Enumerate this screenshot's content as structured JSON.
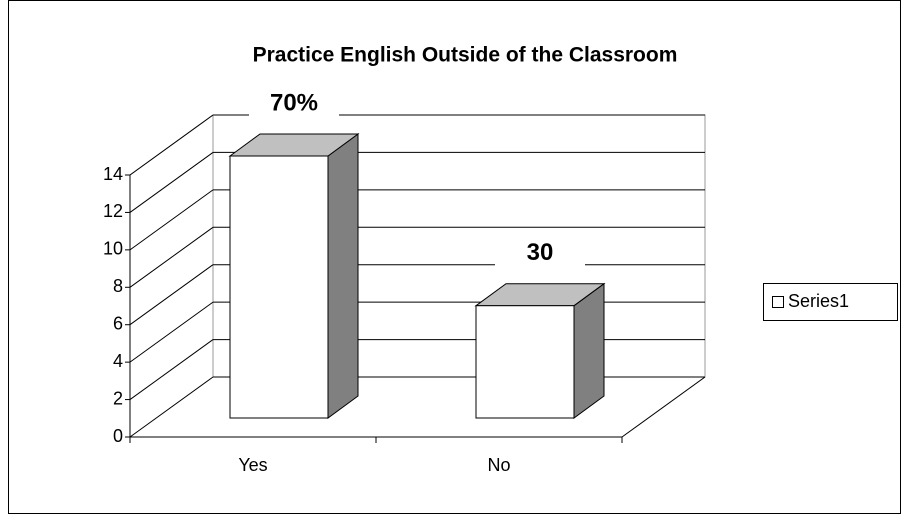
{
  "chart_data": {
    "type": "bar3d",
    "title": "Practice English Outside of the Classroom",
    "categories": [
      "Yes",
      "No"
    ],
    "series": [
      {
        "name": "Series1",
        "color": "#ffffff",
        "top_color": "#c0c0c0",
        "side_color": "#808080",
        "values": [
          14,
          6
        ]
      }
    ],
    "annotations": [
      "70%",
      "30"
    ],
    "ylim": [
      0,
      14
    ],
    "yticks": [
      0,
      2,
      4,
      6,
      8,
      10,
      12,
      14
    ],
    "grid": true,
    "legend": "right"
  }
}
